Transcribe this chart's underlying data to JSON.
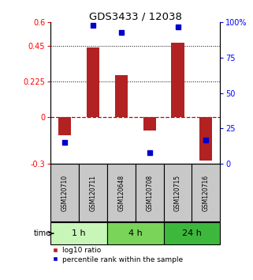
{
  "title": "GDS3433 / 12038",
  "samples": [
    "GSM120710",
    "GSM120711",
    "GSM120648",
    "GSM120708",
    "GSM120715",
    "GSM120716"
  ],
  "log10_ratio": [
    -0.12,
    0.44,
    0.265,
    -0.09,
    0.47,
    -0.28
  ],
  "percentile_rank": [
    15,
    98,
    93,
    8,
    97,
    17
  ],
  "time_groups": [
    {
      "label": "1 h",
      "samples": [
        0,
        1
      ],
      "color": "#c8f5b8"
    },
    {
      "label": "4 h",
      "samples": [
        2,
        3
      ],
      "color": "#7ad45a"
    },
    {
      "label": "24 h",
      "samples": [
        4,
        5
      ],
      "color": "#3db83d"
    }
  ],
  "ylim_left": [
    -0.3,
    0.6
  ],
  "ylim_right": [
    0,
    100
  ],
  "yticks_left": [
    -0.3,
    0,
    0.225,
    0.45,
    0.6
  ],
  "yticks_right": [
    0,
    25,
    50,
    75,
    100
  ],
  "hlines": [
    0.225,
    0.45
  ],
  "bar_color_red": "#b22222",
  "bar_color_blue": "#0000cc",
  "bar_width": 0.45,
  "background_color": "#ffffff",
  "sample_bg_color": "#c8c8c8",
  "legend_red_label": "log10 ratio",
  "legend_blue_label": "percentile rank within the sample",
  "figsize": [
    3.21,
    3.54
  ],
  "dpi": 100
}
